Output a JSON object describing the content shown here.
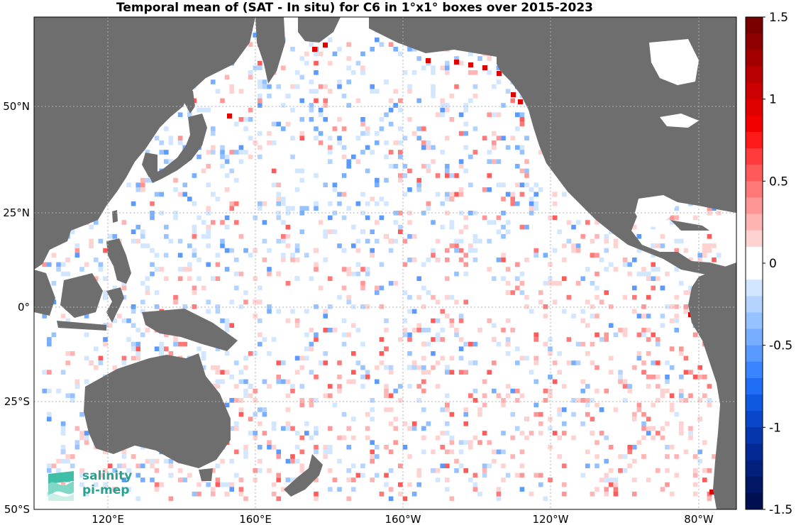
{
  "title": "Temporal mean of (SAT - In situ) for C6 in 1°x1° boxes over 2015-2023",
  "map": {
    "land_color": "#6e6e6e",
    "ocean_color": "#ffffff",
    "grid_color": "#b0b0b0",
    "lat_labels": [
      "50°N",
      "25°N",
      "0°",
      "25°S",
      "50°S"
    ],
    "lon_labels": [
      "120°E",
      "160°E",
      "160°W",
      "120°W",
      "80°W"
    ]
  },
  "colorbar": {
    "min": -1.5,
    "max": 1.5,
    "levels": 30,
    "tick_labels": [
      "1.5",
      "1",
      "0.5",
      "0",
      "-0.5",
      "-1",
      "-1.5"
    ],
    "colors_top_to_bottom": [
      "#7a0000",
      "#8f0000",
      "#a30000",
      "#b80000",
      "#cc0000",
      "#e00000",
      "#f20000",
      "#ff1a1a",
      "#ff3b3b",
      "#ff5a5a",
      "#ff7878",
      "#ff9696",
      "#ffb4b4",
      "#ffd2d2",
      "#ffffff",
      "#ffffff",
      "#d2e6ff",
      "#b4d4ff",
      "#96c2ff",
      "#78aeff",
      "#5a9aff",
      "#3b84ff",
      "#1f6ef5",
      "#0f58e0",
      "#0a46c8",
      "#0636ad",
      "#032a94",
      "#02207c",
      "#011766",
      "#000e52"
    ]
  },
  "logo": {
    "line1": "salinity",
    "line2": "pi-mep",
    "color": "#2aa090"
  }
}
